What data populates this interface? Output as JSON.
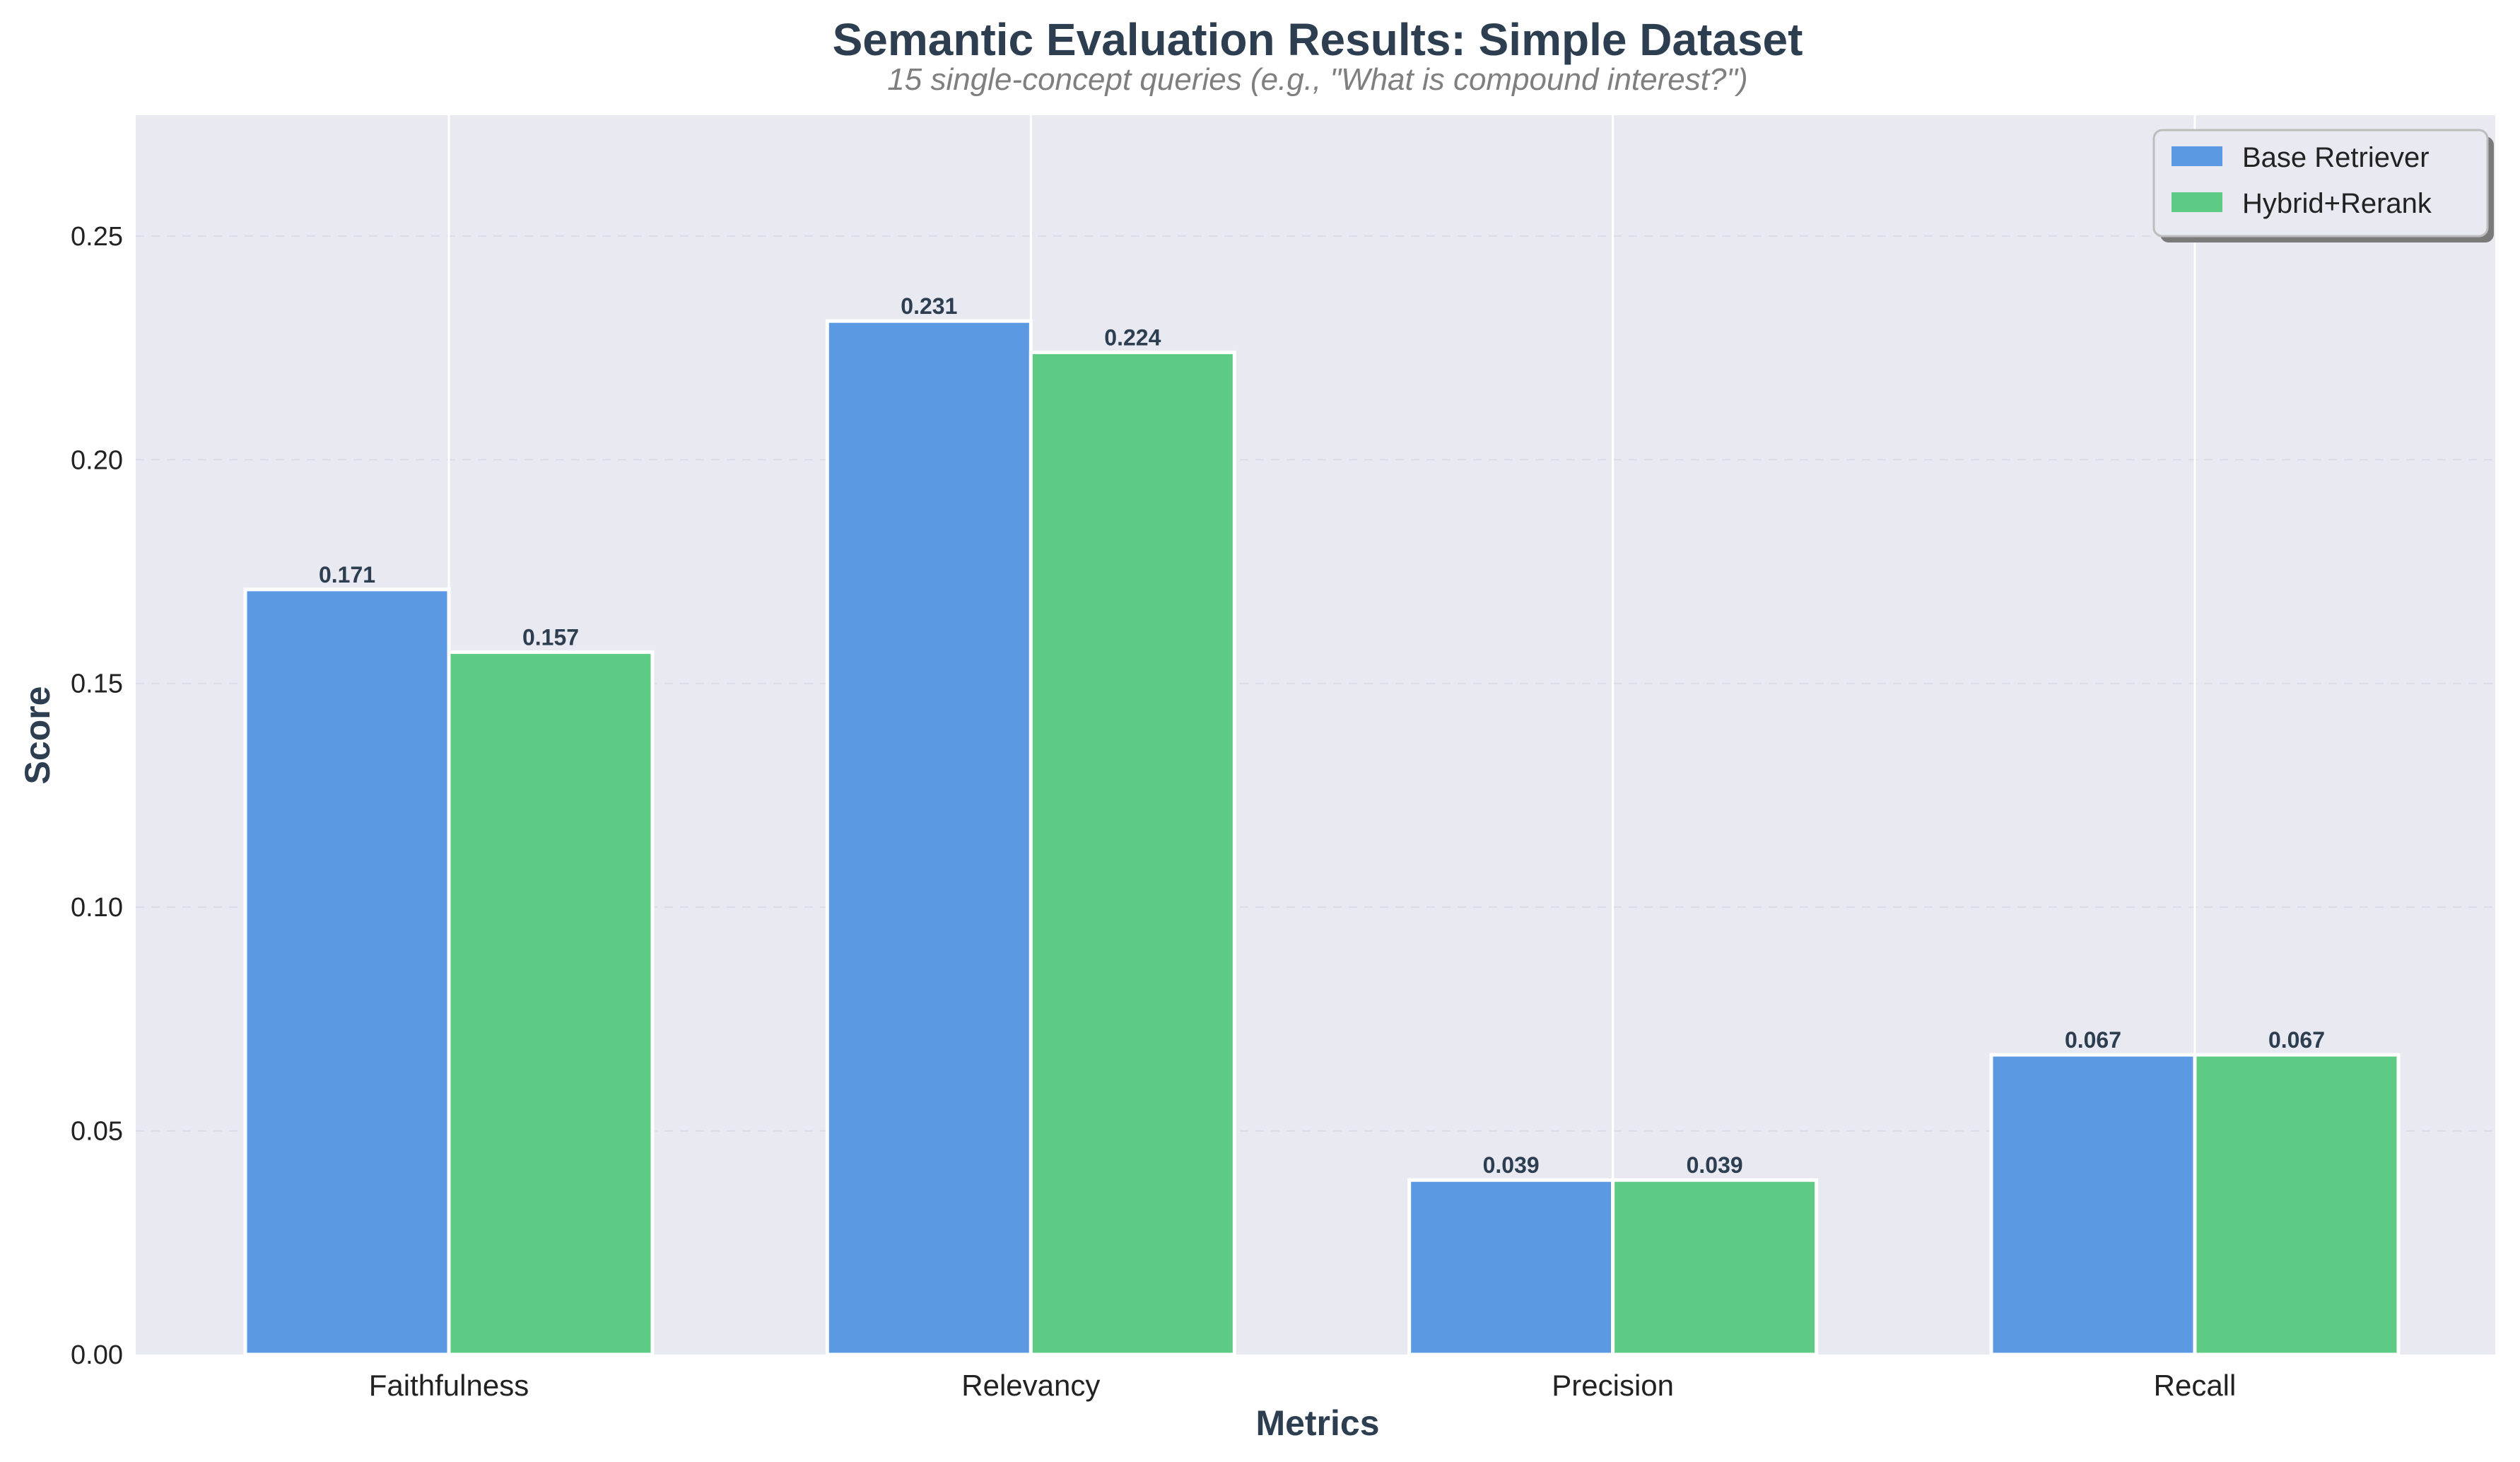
{
  "chart_data": {
    "type": "bar",
    "title": "Semantic Evaluation Results: Simple Dataset",
    "subtitle": "15 single-concept queries (e.g., \"What is compound interest?\")",
    "xlabel": "Metrics",
    "ylabel": "Score",
    "categories": [
      "Faithfulness",
      "Relevancy",
      "Precision",
      "Recall"
    ],
    "series": [
      {
        "name": "Base Retriever",
        "color": "#5b9ae3",
        "values": [
          0.171,
          0.231,
          0.039,
          0.067
        ],
        "labels": [
          "0.171",
          "0.231",
          "0.039",
          "0.067"
        ]
      },
      {
        "name": "Hybrid+Rerank",
        "color": "#5ecb84",
        "values": [
          0.157,
          0.224,
          0.039,
          0.067
        ],
        "labels": [
          "0.157",
          "0.224",
          "0.039",
          "0.067"
        ]
      }
    ],
    "ylim": [
      0,
      0.277
    ],
    "yticks": [
      0.0,
      0.05,
      0.1,
      0.15,
      0.2,
      0.25
    ],
    "ytick_labels": [
      "0.00",
      "0.05",
      "0.10",
      "0.15",
      "0.20",
      "0.25"
    ],
    "grid": true,
    "legend_position": "top-right",
    "colors": {
      "plot_background": "#e9e9f2",
      "grid": "#ffffff",
      "text_dark": "#2c3e50"
    }
  }
}
